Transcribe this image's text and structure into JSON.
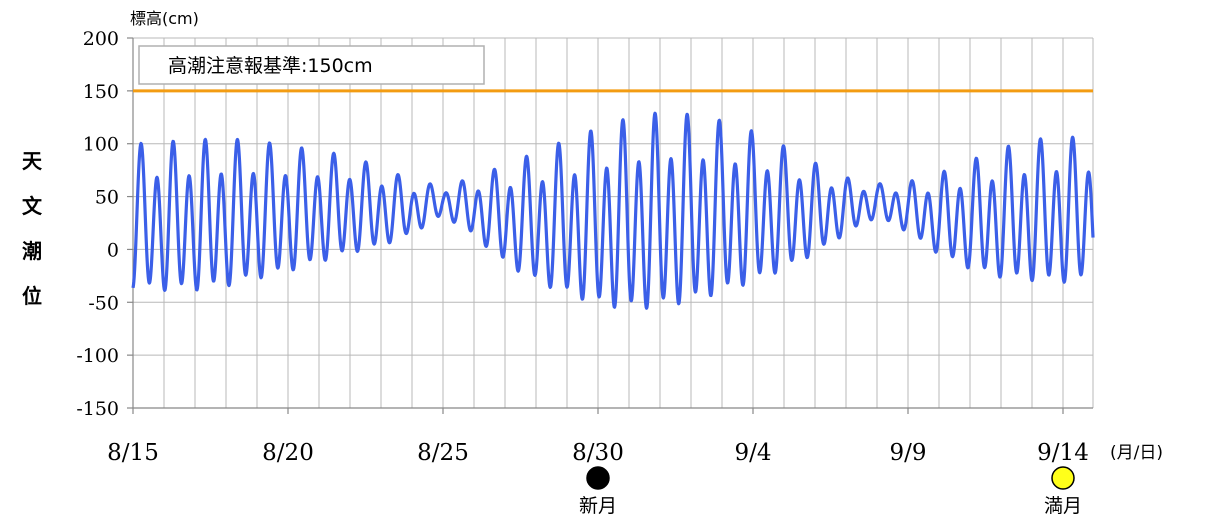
{
  "chart_data": {
    "type": "line",
    "ylabel_top": "標高(cm)",
    "ylabel_side": "天文潮位",
    "x_unit_label": "(月/日)",
    "ylim": [
      -150,
      200
    ],
    "yticks": [
      -150,
      -100,
      -50,
      0,
      50,
      100,
      150,
      200
    ],
    "x_start": "8/15",
    "x_end": "9/15",
    "xtick_labels": [
      "8/15",
      "8/20",
      "8/25",
      "8/30",
      "9/4",
      "9/9",
      "9/14"
    ],
    "grid": true,
    "threshold": {
      "label": "高潮注意報基準:150cm",
      "value": 150,
      "color": "#f39c12"
    },
    "series": [
      {
        "color": "#3b5fe8",
        "x": [
          "8/15",
          "8/16",
          "8/17",
          "8/18",
          "8/19",
          "8/20",
          "8/21",
          "8/22",
          "8/23",
          "8/24",
          "8/25",
          "8/26",
          "8/27",
          "8/28",
          "8/29",
          "8/30",
          "8/31",
          "9/1",
          "9/2",
          "9/3",
          "9/4",
          "9/5",
          "9/6",
          "9/7",
          "9/8",
          "9/9",
          "9/10",
          "9/11",
          "9/12",
          "9/13",
          "9/14",
          "9/15"
        ],
        "high": [
          100,
          102,
          104,
          105,
          103,
          98,
          94,
          88,
          78,
          65,
          60,
          68,
          80,
          92,
          104,
          115,
          125,
          130,
          128,
          122,
          112,
          98,
          82,
          68,
          62,
          64,
          72,
          84,
          96,
          104,
          107,
          105
        ],
        "low": [
          -50,
          -52,
          -52,
          -48,
          -40,
          -32,
          -22,
          -12,
          -4,
          10,
          30,
          8,
          -22,
          -42,
          -56,
          -68,
          -74,
          -72,
          -66,
          -56,
          -44,
          -30,
          -12,
          10,
          28,
          12,
          -12,
          -28,
          -38,
          -42,
          -44,
          -42
        ]
      }
    ],
    "annotations": [
      {
        "date": "8/30",
        "label": "新月",
        "symbol": "new-moon",
        "fill": "#000000"
      },
      {
        "date": "9/14",
        "label": "満月",
        "symbol": "full-moon",
        "fill": "#ffff1a"
      }
    ]
  }
}
